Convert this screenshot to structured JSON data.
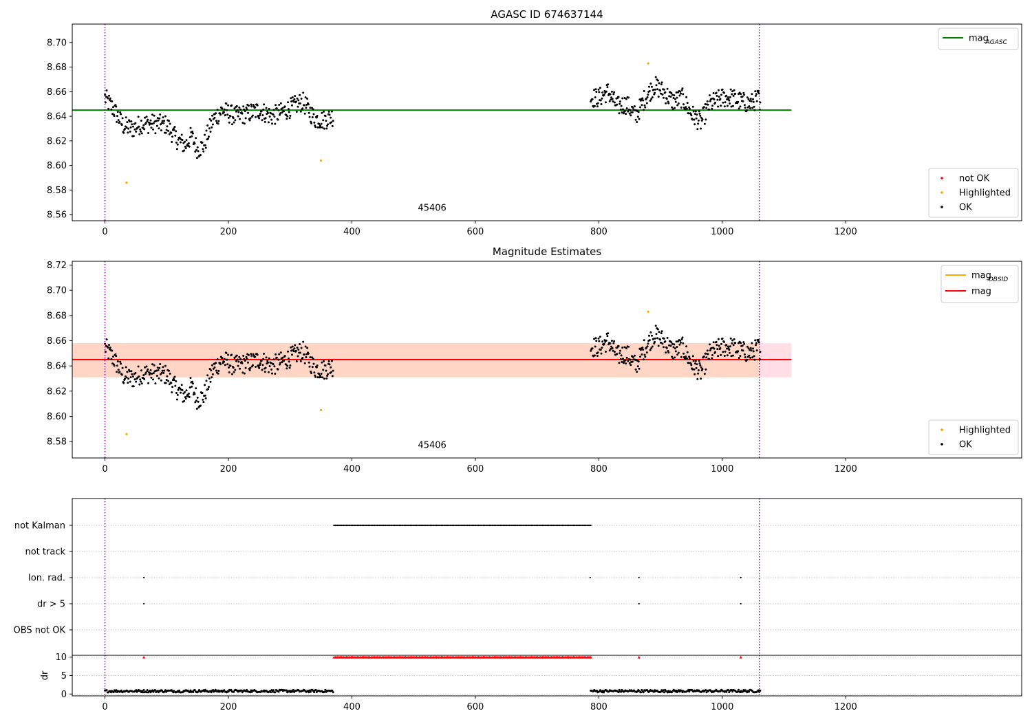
{
  "chart_data": [
    {
      "id": "agasc",
      "type": "scatter",
      "title": "AGASC ID 674637144",
      "xlim": [
        -53,
        1485
      ],
      "ylim": [
        8.555,
        8.715
      ],
      "xticks": [
        0,
        200,
        400,
        600,
        800,
        1000,
        1200
      ],
      "yticks": [
        8.56,
        8.58,
        8.6,
        8.62,
        8.64,
        8.66,
        8.68,
        8.7
      ],
      "grid": false,
      "obsid_label": {
        "text": "45406",
        "x": 530,
        "y": 8.563
      },
      "vlines": [
        0,
        1060
      ],
      "hline": {
        "y": 8.645,
        "x": [
          -53,
          1112
        ],
        "color": "#008000"
      },
      "line_legend": {
        "position": "top-right",
        "entries": [
          {
            "label": "mag",
            "subscript": "AGASC",
            "color": "#008000"
          }
        ]
      },
      "point_legend": {
        "position": "bottom-right",
        "entries": [
          {
            "label": "not OK",
            "color": "#ff0000"
          },
          {
            "label": "Highlighted",
            "color": "#ffa500"
          },
          {
            "label": "OK",
            "color": "#000000"
          }
        ]
      },
      "highlighted_points": [
        [
          35,
          8.586
        ],
        [
          350,
          8.604
        ],
        [
          880,
          8.683
        ]
      ]
    },
    {
      "id": "estimates",
      "type": "scatter",
      "title": "Magnitude Estimates",
      "xlim": [
        -53,
        1485
      ],
      "ylim": [
        8.567,
        8.723
      ],
      "xticks": [
        0,
        200,
        400,
        600,
        800,
        1000,
        1200
      ],
      "yticks": [
        8.58,
        8.6,
        8.62,
        8.64,
        8.66,
        8.68,
        8.7,
        8.72
      ],
      "grid": false,
      "obsid_label": {
        "text": "45406",
        "x": 530,
        "y": 8.575
      },
      "vlines": [
        0,
        1060
      ],
      "band_outer": {
        "y": [
          8.631,
          8.658
        ],
        "x": [
          -53,
          1112
        ],
        "color": "#ffc0cb"
      },
      "band_inner": {
        "y": [
          8.631,
          8.658
        ],
        "x": [
          -53,
          1060
        ],
        "color": "#ffd2b8"
      },
      "hline": {
        "y": 8.645,
        "x": [
          -53,
          1112
        ],
        "color": "#ff0000"
      },
      "line_legend": {
        "position": "top-right",
        "entries": [
          {
            "label": "mag",
            "subscript": "OBSID",
            "color": "#ffa500"
          },
          {
            "label": "mag",
            "subscript": "",
            "color": "#ff0000"
          }
        ]
      },
      "point_legend": {
        "position": "bottom-right",
        "entries": [
          {
            "label": "Highlighted",
            "color": "#ffa500"
          },
          {
            "label": "OK",
            "color": "#000000"
          }
        ]
      },
      "highlighted_points": [
        [
          35,
          8.586
        ],
        [
          350,
          8.605
        ],
        [
          880,
          8.683
        ]
      ]
    },
    {
      "id": "flags",
      "type": "scatter",
      "xlim": [
        -53,
        1485
      ],
      "vlines": [
        0,
        1060
      ],
      "categories": [
        "not Kalman",
        "not track",
        "Ion. rad.",
        "dr > 5",
        "OBS not OK"
      ],
      "category_points": [
        {
          "category": "not Kalman",
          "range": [
            371,
            787
          ]
        },
        {
          "category": "not track",
          "x": []
        },
        {
          "category": "Ion. rad.",
          "x": [
            63,
            786,
            865,
            1030
          ]
        },
        {
          "category": "dr > 5",
          "x": [
            63,
            865,
            1030
          ]
        },
        {
          "category": "OBS not OK",
          "x": []
        }
      ]
    },
    {
      "id": "dr",
      "type": "scatter",
      "ylabel": "dr",
      "xlim": [
        -53,
        1485
      ],
      "ylim": [
        -0.5,
        10.5
      ],
      "xticks": [
        0,
        200,
        400,
        600,
        800,
        1000,
        1200
      ],
      "yticks": [
        0,
        5,
        10
      ],
      "grid": true,
      "vlines": [
        0,
        1060
      ],
      "clipped_points": {
        "value": 10,
        "color": "#ff0000",
        "x": [
          63,
          865,
          1030
        ],
        "range": [
          371,
          787
        ]
      }
    }
  ]
}
